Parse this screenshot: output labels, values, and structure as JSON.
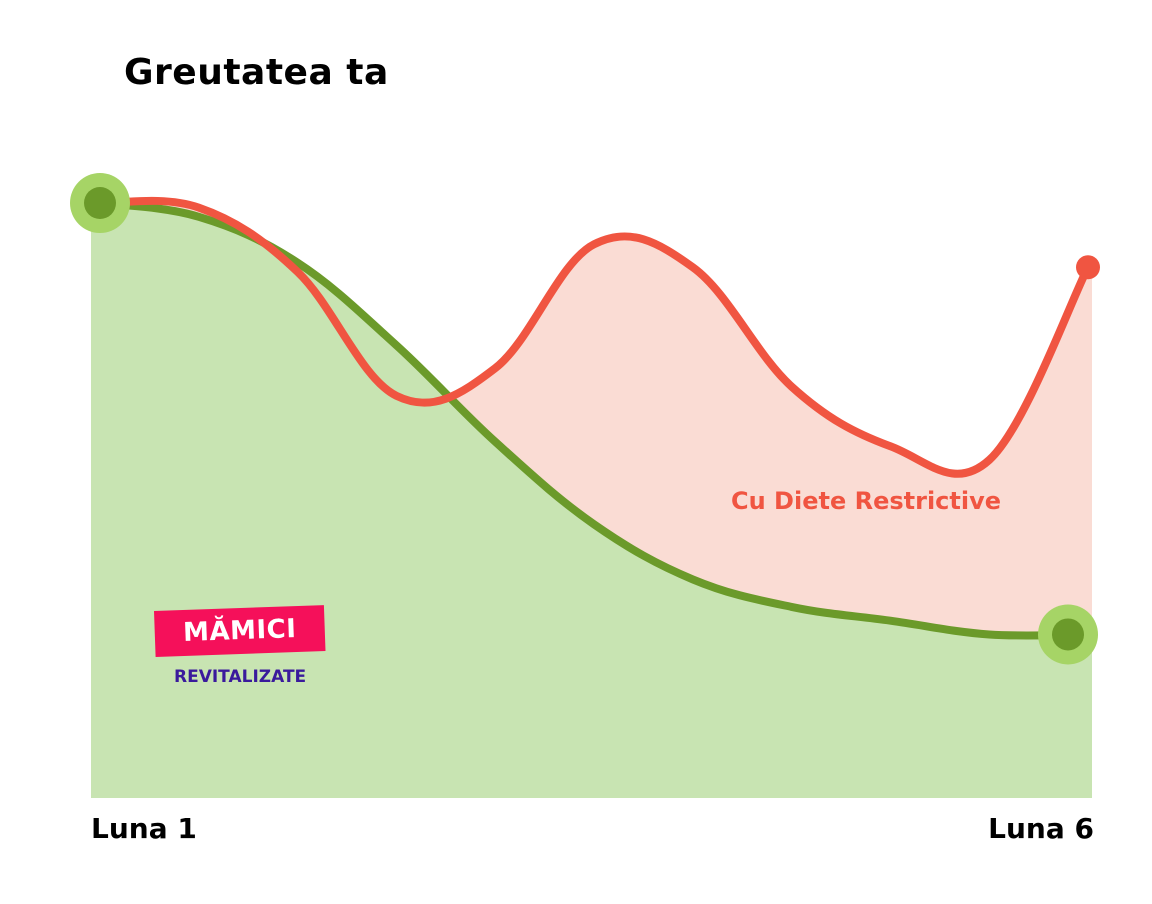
{
  "title": "Greutatea ta",
  "x_labels": {
    "start": "Luna 1",
    "end": "Luna 6"
  },
  "series_label": "Cu Diete Restrictive",
  "logo": {
    "line1": "MĂMICI",
    "line2": "REVITALIZATE"
  },
  "colors": {
    "green_line": "#6b9a2a",
    "green_fill": "#c8e4b2",
    "green_marker_outer": "#a6d466",
    "red_line": "#f05541",
    "red_fill": "#fadcd4",
    "logo_bg": "#f5105a",
    "logo_text": "#3a1a9c"
  },
  "chart_data": {
    "type": "line",
    "title": "Greutatea ta",
    "xlabel": "",
    "ylabel": "",
    "x": [
      0,
      0.1,
      0.2,
      0.3,
      0.4,
      0.5,
      0.6,
      0.7,
      0.8,
      0.9,
      1.0
    ],
    "x_tick_labels": [
      "Luna 1",
      "Luna 6"
    ],
    "series": [
      {
        "name": "Cu Diete Restrictive",
        "values": [
          1.0,
          0.99,
          0.85,
          0.58,
          0.64,
          0.91,
          0.86,
          0.6,
          0.47,
          0.44,
          0.86
        ],
        "color": "#f05541"
      },
      {
        "name": "",
        "values": [
          1.0,
          0.97,
          0.87,
          0.69,
          0.48,
          0.3,
          0.18,
          0.12,
          0.09,
          0.06,
          0.06
        ],
        "color": "#6b9a2a"
      }
    ],
    "grid": false,
    "legend": "none"
  }
}
